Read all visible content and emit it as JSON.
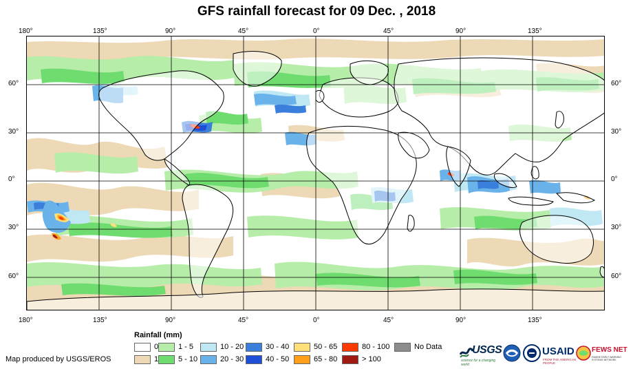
{
  "title": "GFS rainfall forecast for 09 Dec. , 2018",
  "map": {
    "lon_labels_top": [
      "180°",
      "135°",
      "90°",
      "45°",
      "0°",
      "45°",
      "90°",
      "135°"
    ],
    "lon_labels_bottom": [
      "180°",
      "135°",
      "90°",
      "45°",
      "0°",
      "45°",
      "90°",
      "135°"
    ],
    "lat_labels_left": [
      "60°",
      "30°",
      "0°",
      "30°",
      "60°"
    ],
    "lat_labels_right": [
      "60°",
      "30°",
      "0°",
      "30°",
      "60°"
    ],
    "colors": {
      "ocean_land": "#ffffff",
      "trace": "#eed9b6",
      "light_green": "#b6eda8",
      "green": "#6fdc6f",
      "light_blue": "#bfe8f4",
      "blue_mid": "#6ab2ea",
      "blue": "#3a7fdc",
      "blue_dark": "#1f4fd6",
      "yellow": "#ffe07a",
      "orange": "#ff9f1a",
      "red": "#ff3a00",
      "dark_red": "#a01a14",
      "no_data": "#8c8c8c",
      "graticule": "#000000"
    }
  },
  "legend": {
    "title": "Rainfall (mm)",
    "items": [
      {
        "label": "0",
        "color": "#ffffff"
      },
      {
        "label": "1",
        "color": "#eed9b6"
      },
      {
        "label": "1 - 5",
        "color": "#b6eda8"
      },
      {
        "label": "5 - 10",
        "color": "#6fdc6f"
      },
      {
        "label": "10 - 20",
        "color": "#bfe8f4"
      },
      {
        "label": "20 - 30",
        "color": "#6ab2ea"
      },
      {
        "label": "30 - 40",
        "color": "#3a7fdc"
      },
      {
        "label": "40 - 50",
        "color": "#1f4fd6"
      },
      {
        "label": "50 - 65",
        "color": "#ffe07a"
      },
      {
        "label": "65 - 80",
        "color": "#ff9f1a"
      },
      {
        "label": "80 - 100",
        "color": "#ff3a00"
      },
      {
        "label": "> 100",
        "color": "#a01a14"
      },
      {
        "label": "No Data",
        "color": "#8c8c8c"
      }
    ]
  },
  "credit": "Map produced by USGS/EROS",
  "logos": {
    "usgs": {
      "name": "USGS",
      "tagline": "science for a changing world"
    },
    "noaa": {
      "name": "NOAA"
    },
    "usaid": {
      "name": "USAID",
      "tagline": "FROM THE AMERICAN PEOPLE"
    },
    "fews": {
      "name": "FEWS NET",
      "tagline": "FAMINE EARLY WARNING SYSTEMS NETWORK"
    }
  }
}
